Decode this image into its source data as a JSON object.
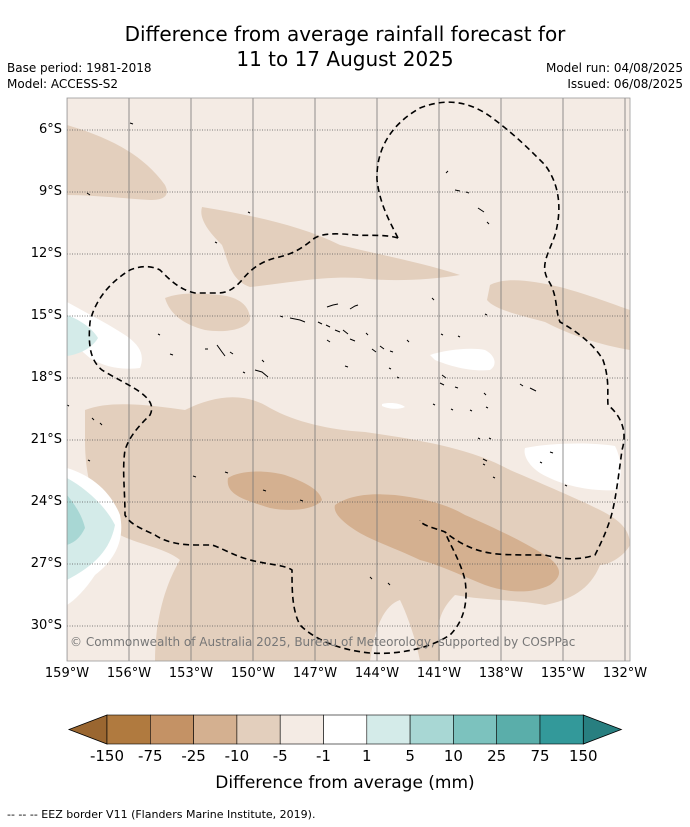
{
  "title_line1": "Difference from average rainfall forecast for",
  "title_line2": "11 to 17 August 2025",
  "base_period": "Base period: 1981-2018",
  "model": "Model: ACCESS-S2",
  "model_run": "Model run: 04/08/2025",
  "issued": "Issued: 06/08/2025",
  "lat_labels": [
    "6°S",
    "9°S",
    "12°S",
    "15°S",
    "18°S",
    "21°S",
    "24°S",
    "27°S",
    "30°S"
  ],
  "lon_labels": [
    "159°W",
    "156°W",
    "153°W",
    "150°W",
    "147°W",
    "144°W",
    "141°W",
    "138°W",
    "135°W",
    "132°W"
  ],
  "copyright": "© Commonwealth of Australia 2025, Bureau of Meteorology, supported by COSPPac",
  "colorbar": {
    "title": "Difference from average (mm)",
    "tick_labels": [
      "-150",
      "-75",
      "-25",
      "-10",
      "-5",
      "-1",
      "1",
      "5",
      "10",
      "25",
      "75",
      "150"
    ],
    "colors": [
      "#9a6630",
      "#b07a3f",
      "#c49265",
      "#d4b090",
      "#e3cfbd",
      "#f4ebe4",
      "#ffffff",
      "#d4ebe9",
      "#a8d7d4",
      "#7cc2be",
      "#5aaeaa",
      "#33999a",
      "#287f80"
    ]
  },
  "map_colors": {
    "background": "#f4ebe4",
    "light_brown": "#e3cfbd",
    "mid_brown": "#d4b090",
    "white": "#ffffff",
    "light_teal": "#d4ebe9",
    "teal": "#a8d7d4"
  },
  "footer": "--  --  -- EEZ border V11 (Flanders Marine Institute, 2019)."
}
